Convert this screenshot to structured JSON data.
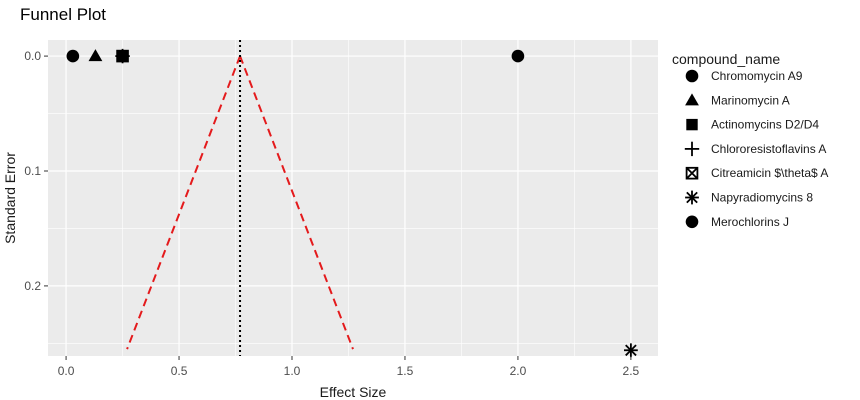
{
  "chart_data": {
    "type": "scatter",
    "title": "Funnel Plot",
    "xlabel": "Effect Size",
    "ylabel": "Standard Error",
    "xlim": [
      -0.08,
      2.62
    ],
    "ylim": [
      0.261,
      -0.014
    ],
    "y_reversed": true,
    "x_ticks": [
      0,
      0.5,
      1,
      1.5,
      2,
      2.5
    ],
    "x_tick_labels": [
      "0.0",
      "0.5",
      "1.0",
      "1.5",
      "2.0",
      "2.5"
    ],
    "y_ticks": [
      0,
      0.1,
      0.2
    ],
    "y_tick_labels": [
      "0.0",
      "0.1",
      "0.2"
    ],
    "grid": true,
    "legend_title": "compound_name",
    "legend_position": "right",
    "series": [
      {
        "name": "Chromomycin A9",
        "shape": "circle",
        "points": [
          {
            "x": 0.03,
            "y": 0
          }
        ]
      },
      {
        "name": "Marinomycin A",
        "shape": "triangle",
        "points": [
          {
            "x": 0.13,
            "y": 0
          }
        ]
      },
      {
        "name": "Actinomycins D2/D4",
        "shape": "square",
        "points": [
          {
            "x": 0.25,
            "y": 0
          }
        ]
      },
      {
        "name": "Chlororesistoflavins A",
        "shape": "plus",
        "points": [
          {
            "x": 0.25,
            "y": 0
          }
        ]
      },
      {
        "name": "Citreamicin $\\theta$ A",
        "shape": "square-x",
        "points": [
          {
            "x": 0.25,
            "y": 0
          }
        ]
      },
      {
        "name": "Napyradiomycins 8",
        "shape": "asterisk",
        "points": [
          {
            "x": 2.5,
            "y": 0.256
          }
        ]
      },
      {
        "name": "Merochlorins J",
        "shape": "circle",
        "points": [
          {
            "x": 2.0,
            "y": 0
          }
        ]
      }
    ],
    "reference_line": {
      "x": 0.77,
      "style": "dotted",
      "color": "#000000"
    },
    "funnel": {
      "color": "#e41a1c",
      "style": "dashed",
      "apex": {
        "x": 0.77,
        "y": 0
      },
      "left_end": {
        "x": 0.27,
        "y": 0.255
      },
      "right_end": {
        "x": 1.27,
        "y": 0.255
      }
    }
  },
  "colors": {
    "panel_background": "#ebebeb",
    "grid_major": "#ffffff",
    "point": "#000000"
  }
}
